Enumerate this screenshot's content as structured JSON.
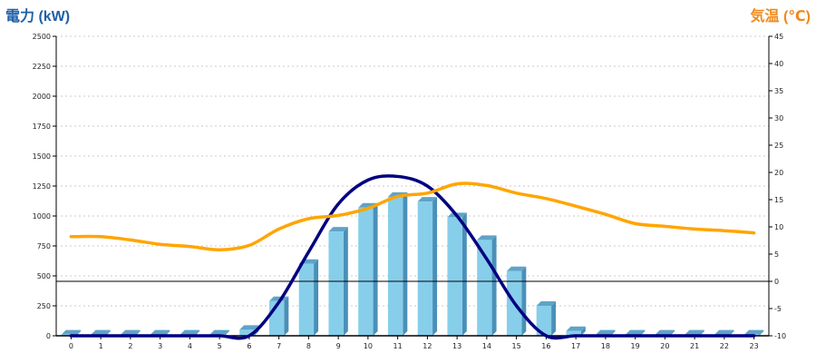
{
  "chart_data": {
    "type": "bar+line",
    "title": "",
    "y_left_label": "電力 (kW)",
    "y_right_label": "気温 (℃)",
    "x": [
      0,
      1,
      2,
      3,
      4,
      5,
      6,
      7,
      8,
      9,
      10,
      11,
      12,
      13,
      14,
      15,
      16,
      17,
      18,
      19,
      20,
      21,
      22,
      23
    ],
    "x_tick_labels": [
      "0",
      "1",
      "2",
      "3",
      "4",
      "5",
      "6",
      "7",
      "8",
      "9",
      "10",
      "11",
      "12",
      "13",
      "14",
      "15",
      "16",
      "17",
      "18",
      "19",
      "20",
      "21",
      "22",
      "23"
    ],
    "y_left_lim": [
      0,
      2500
    ],
    "y_left_ticks": [
      "0",
      "250",
      "500",
      "750",
      "1000",
      "1250",
      "1500",
      "1750",
      "2000",
      "2250",
      "2500"
    ],
    "y_right_lim": [
      -10,
      45
    ],
    "y_right_ticks": [
      "-10",
      "-5",
      "0",
      "5",
      "10",
      "15",
      "20",
      "25",
      "30",
      "35",
      "40",
      "45"
    ],
    "grid": true,
    "series": [
      {
        "kind": "bar",
        "axis": "left",
        "color": "#87ceeb",
        "values": [
          10,
          10,
          10,
          10,
          10,
          10,
          50,
          290,
          600,
          870,
          1070,
          1160,
          1120,
          990,
          800,
          540,
          250,
          40,
          10,
          10,
          10,
          10,
          10,
          10
        ]
      },
      {
        "kind": "line",
        "axis": "left",
        "color": "#000080",
        "values": [
          0,
          0,
          0,
          0,
          0,
          0,
          0,
          280,
          700,
          1100,
          1300,
          1330,
          1250,
          1000,
          640,
          250,
          0,
          0,
          0,
          0,
          0,
          0,
          0,
          0
        ]
      },
      {
        "kind": "line",
        "axis": "right",
        "color": "#ffa500",
        "values": [
          8.2,
          8.2,
          7.6,
          6.8,
          6.4,
          5.8,
          6.6,
          9.6,
          11.5,
          12.1,
          13.4,
          15.6,
          16.2,
          17.9,
          17.6,
          16.2,
          15.2,
          13.8,
          12.3,
          10.6,
          10.1,
          9.6,
          9.3,
          8.9
        ]
      }
    ]
  }
}
